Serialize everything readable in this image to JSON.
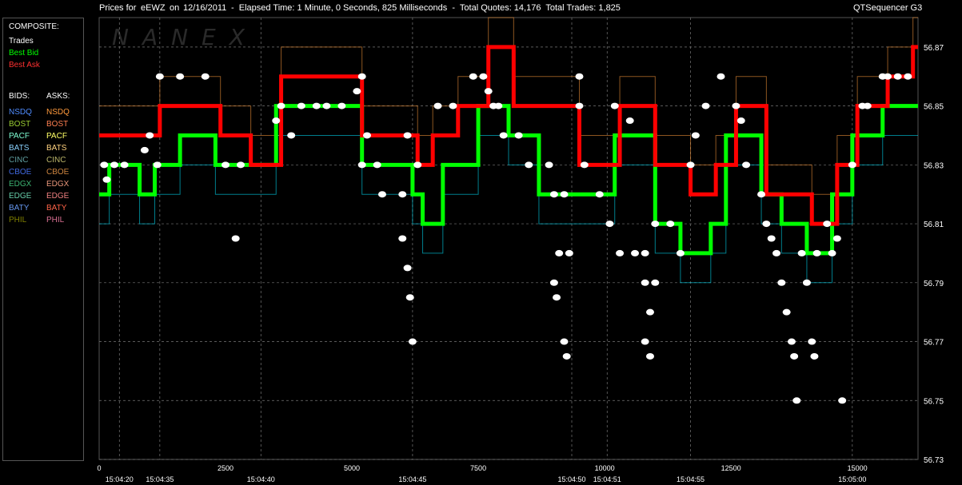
{
  "header": {
    "prefix": "Prices for",
    "symbol": "eEWZ",
    "on_label": "on",
    "date": "12/16/2011",
    "elapsed": "-  Elapsed Time: 1 Minute, 0 Seconds, 825 Milliseconds  -  Total Quotes: 14,176  Total Trades: 1,825",
    "app": "QTSequencer G3"
  },
  "watermark": "NANEX",
  "legend": {
    "composite_title": "COMPOSITE:",
    "composite": [
      {
        "label": "Trades",
        "color": "#ffffff"
      },
      {
        "label": "Best Bid",
        "color": "#00ff00"
      },
      {
        "label": "Best Ask",
        "color": "#ff0000"
      }
    ],
    "bids_title": "BIDS:",
    "asks_title": "ASKS:",
    "exchanges": [
      {
        "bid": "NSDQ",
        "ask": "NSDQ",
        "bid_color": "#4f8cff",
        "ask_color": "#ff9a3c"
      },
      {
        "bid": "BOST",
        "ask": "BOST",
        "bid_color": "#9acd32",
        "ask_color": "#ff7f50"
      },
      {
        "bid": "PACF",
        "ask": "PACF",
        "bid_color": "#7fffd4",
        "ask_color": "#ffff66"
      },
      {
        "bid": "BATS",
        "ask": "BATS",
        "bid_color": "#87cefa",
        "ask_color": "#ffd27f"
      },
      {
        "bid": "CINC",
        "ask": "CINC",
        "bid_color": "#5f9ea0",
        "ask_color": "#bdb76b"
      },
      {
        "bid": "CBOE",
        "ask": "CBOE",
        "bid_color": "#4169e1",
        "ask_color": "#cd853f"
      },
      {
        "bid": "EDGX",
        "ask": "EDGX",
        "bid_color": "#3cb371",
        "ask_color": "#e9967a"
      },
      {
        "bid": "EDGE",
        "ask": "EDGE",
        "bid_color": "#66cdaa",
        "ask_color": "#f08080"
      },
      {
        "bid": "BATY",
        "ask": "BATY",
        "bid_color": "#6495ed",
        "ask_color": "#ff6347"
      },
      {
        "bid": "PHIL",
        "ask": "PHIL",
        "bid_color": "#808000",
        "ask_color": "#db7093"
      }
    ]
  },
  "colors": {
    "background": "#000000",
    "grid": "#777777",
    "axis_text": "#ffffff",
    "trade": "#ffffff",
    "best_bid": "#00ff00",
    "best_ask": "#ff0000",
    "bid_line": "#00e5ff",
    "ask_line": "#ff9a3c",
    "spike_line": "#c8c800"
  },
  "chart_data": {
    "type": "line",
    "title": "Prices for eEWZ on 12/16/2011",
    "xlabel": "",
    "ylabel": "",
    "xlim": [
      0,
      16200
    ],
    "ylim": [
      56.73,
      56.88
    ],
    "y_ticks": [
      56.73,
      56.75,
      56.77,
      56.79,
      56.81,
      56.83,
      56.85,
      56.87
    ],
    "x_ticks": [
      0,
      2500,
      5000,
      7500,
      10000,
      12500,
      15000
    ],
    "time_ticks": [
      {
        "x": 400,
        "label": "15:04:20"
      },
      {
        "x": 1200,
        "label": "15:04:35"
      },
      {
        "x": 3200,
        "label": "15:04:40"
      },
      {
        "x": 6200,
        "label": "15:04:45"
      },
      {
        "x": 9350,
        "label": "15:04:50"
      },
      {
        "x": 10050,
        "label": "15:04:51"
      },
      {
        "x": 11700,
        "label": "15:04:55"
      },
      {
        "x": 14900,
        "label": "15:05:00"
      }
    ],
    "grid": true,
    "series": [
      {
        "name": "Best Bid",
        "color": "#00ff00",
        "x": [
          0,
          200,
          800,
          1100,
          1600,
          2300,
          2900,
          3500,
          5000,
          5200,
          6200,
          6400,
          6800,
          7500,
          8100,
          8700,
          9400,
          10200,
          11000,
          11500,
          12100,
          12400,
          13100,
          13500,
          14000,
          14500,
          14900,
          15500,
          16100
        ],
        "y": [
          56.82,
          56.83,
          56.82,
          56.83,
          56.84,
          56.83,
          56.83,
          56.85,
          56.85,
          56.83,
          56.82,
          56.81,
          56.83,
          56.85,
          56.84,
          56.82,
          56.82,
          56.84,
          56.81,
          56.8,
          56.81,
          56.84,
          56.82,
          56.81,
          56.8,
          56.82,
          56.84,
          56.85,
          56.85
        ]
      },
      {
        "name": "Best Ask",
        "color": "#ff0000",
        "x": [
          0,
          300,
          900,
          1200,
          1700,
          2400,
          3000,
          3600,
          4200,
          5200,
          6300,
          6600,
          7100,
          7700,
          8200,
          8800,
          9500,
          10300,
          11000,
          11700,
          12200,
          12600,
          13200,
          13600,
          14100,
          14600,
          15000,
          15600,
          16100
        ],
        "y": [
          56.84,
          56.84,
          56.84,
          56.85,
          56.85,
          56.84,
          56.83,
          56.86,
          56.86,
          56.84,
          56.83,
          56.84,
          56.85,
          56.87,
          56.85,
          56.85,
          56.83,
          56.85,
          56.83,
          56.82,
          56.83,
          56.85,
          56.82,
          56.82,
          56.81,
          56.83,
          56.85,
          56.86,
          56.87
        ]
      }
    ],
    "trades": [
      {
        "x": 100,
        "y": 56.83
      },
      {
        "x": 150,
        "y": 56.825
      },
      {
        "x": 300,
        "y": 56.83
      },
      {
        "x": 500,
        "y": 56.83
      },
      {
        "x": 900,
        "y": 56.835
      },
      {
        "x": 1000,
        "y": 56.84
      },
      {
        "x": 1150,
        "y": 56.83
      },
      {
        "x": 1200,
        "y": 56.86
      },
      {
        "x": 1600,
        "y": 56.86
      },
      {
        "x": 2100,
        "y": 56.86
      },
      {
        "x": 2500,
        "y": 56.83
      },
      {
        "x": 2700,
        "y": 56.805
      },
      {
        "x": 2800,
        "y": 56.83
      },
      {
        "x": 3500,
        "y": 56.845
      },
      {
        "x": 3600,
        "y": 56.85
      },
      {
        "x": 3800,
        "y": 56.84
      },
      {
        "x": 4000,
        "y": 56.85
      },
      {
        "x": 4300,
        "y": 56.85
      },
      {
        "x": 4500,
        "y": 56.85
      },
      {
        "x": 4800,
        "y": 56.85
      },
      {
        "x": 5100,
        "y": 56.855
      },
      {
        "x": 5200,
        "y": 56.86
      },
      {
        "x": 5300,
        "y": 56.84
      },
      {
        "x": 5200,
        "y": 56.83
      },
      {
        "x": 5500,
        "y": 56.83
      },
      {
        "x": 5600,
        "y": 56.82
      },
      {
        "x": 6000,
        "y": 56.82
      },
      {
        "x": 6000,
        "y": 56.805
      },
      {
        "x": 6100,
        "y": 56.795
      },
      {
        "x": 6150,
        "y": 56.785
      },
      {
        "x": 6200,
        "y": 56.77
      },
      {
        "x": 6100,
        "y": 56.84
      },
      {
        "x": 6300,
        "y": 56.83
      },
      {
        "x": 6700,
        "y": 56.85
      },
      {
        "x": 7000,
        "y": 56.85
      },
      {
        "x": 7400,
        "y": 56.86
      },
      {
        "x": 7600,
        "y": 56.86
      },
      {
        "x": 7700,
        "y": 56.855
      },
      {
        "x": 7800,
        "y": 56.85
      },
      {
        "x": 7900,
        "y": 56.85
      },
      {
        "x": 8000,
        "y": 56.84
      },
      {
        "x": 8300,
        "y": 56.84
      },
      {
        "x": 8500,
        "y": 56.83
      },
      {
        "x": 8900,
        "y": 56.83
      },
      {
        "x": 9000,
        "y": 56.82
      },
      {
        "x": 9200,
        "y": 56.82
      },
      {
        "x": 9100,
        "y": 56.8
      },
      {
        "x": 9000,
        "y": 56.79
      },
      {
        "x": 9050,
        "y": 56.785
      },
      {
        "x": 9200,
        "y": 56.77
      },
      {
        "x": 9250,
        "y": 56.765
      },
      {
        "x": 9300,
        "y": 56.8
      },
      {
        "x": 9500,
        "y": 56.86
      },
      {
        "x": 9500,
        "y": 56.85
      },
      {
        "x": 9600,
        "y": 56.83
      },
      {
        "x": 9900,
        "y": 56.82
      },
      {
        "x": 10200,
        "y": 56.85
      },
      {
        "x": 10500,
        "y": 56.845
      },
      {
        "x": 10100,
        "y": 56.81
      },
      {
        "x": 10300,
        "y": 56.8
      },
      {
        "x": 10600,
        "y": 56.8
      },
      {
        "x": 10800,
        "y": 56.8
      },
      {
        "x": 10800,
        "y": 56.79
      },
      {
        "x": 11000,
        "y": 56.79
      },
      {
        "x": 10900,
        "y": 56.78
      },
      {
        "x": 10800,
        "y": 56.77
      },
      {
        "x": 10900,
        "y": 56.765
      },
      {
        "x": 11000,
        "y": 56.81
      },
      {
        "x": 11300,
        "y": 56.81
      },
      {
        "x": 11500,
        "y": 56.8
      },
      {
        "x": 11700,
        "y": 56.83
      },
      {
        "x": 11800,
        "y": 56.84
      },
      {
        "x": 12000,
        "y": 56.85
      },
      {
        "x": 12300,
        "y": 56.86
      },
      {
        "x": 12600,
        "y": 56.85
      },
      {
        "x": 12700,
        "y": 56.845
      },
      {
        "x": 12800,
        "y": 56.83
      },
      {
        "x": 13100,
        "y": 56.82
      },
      {
        "x": 13200,
        "y": 56.81
      },
      {
        "x": 13300,
        "y": 56.805
      },
      {
        "x": 13400,
        "y": 56.8
      },
      {
        "x": 13500,
        "y": 56.79
      },
      {
        "x": 13600,
        "y": 56.78
      },
      {
        "x": 13700,
        "y": 56.77
      },
      {
        "x": 13750,
        "y": 56.765
      },
      {
        "x": 13800,
        "y": 56.75
      },
      {
        "x": 13900,
        "y": 56.8
      },
      {
        "x": 14000,
        "y": 56.79
      },
      {
        "x": 14100,
        "y": 56.77
      },
      {
        "x": 14150,
        "y": 56.765
      },
      {
        "x": 14200,
        "y": 56.8
      },
      {
        "x": 14500,
        "y": 56.8
      },
      {
        "x": 14400,
        "y": 56.81
      },
      {
        "x": 14600,
        "y": 56.805
      },
      {
        "x": 14700,
        "y": 56.75
      },
      {
        "x": 14900,
        "y": 56.83
      },
      {
        "x": 15100,
        "y": 56.85
      },
      {
        "x": 15200,
        "y": 56.85
      },
      {
        "x": 15500,
        "y": 56.86
      },
      {
        "x": 15600,
        "y": 56.86
      },
      {
        "x": 15800,
        "y": 56.86
      },
      {
        "x": 16000,
        "y": 56.86
      }
    ]
  }
}
